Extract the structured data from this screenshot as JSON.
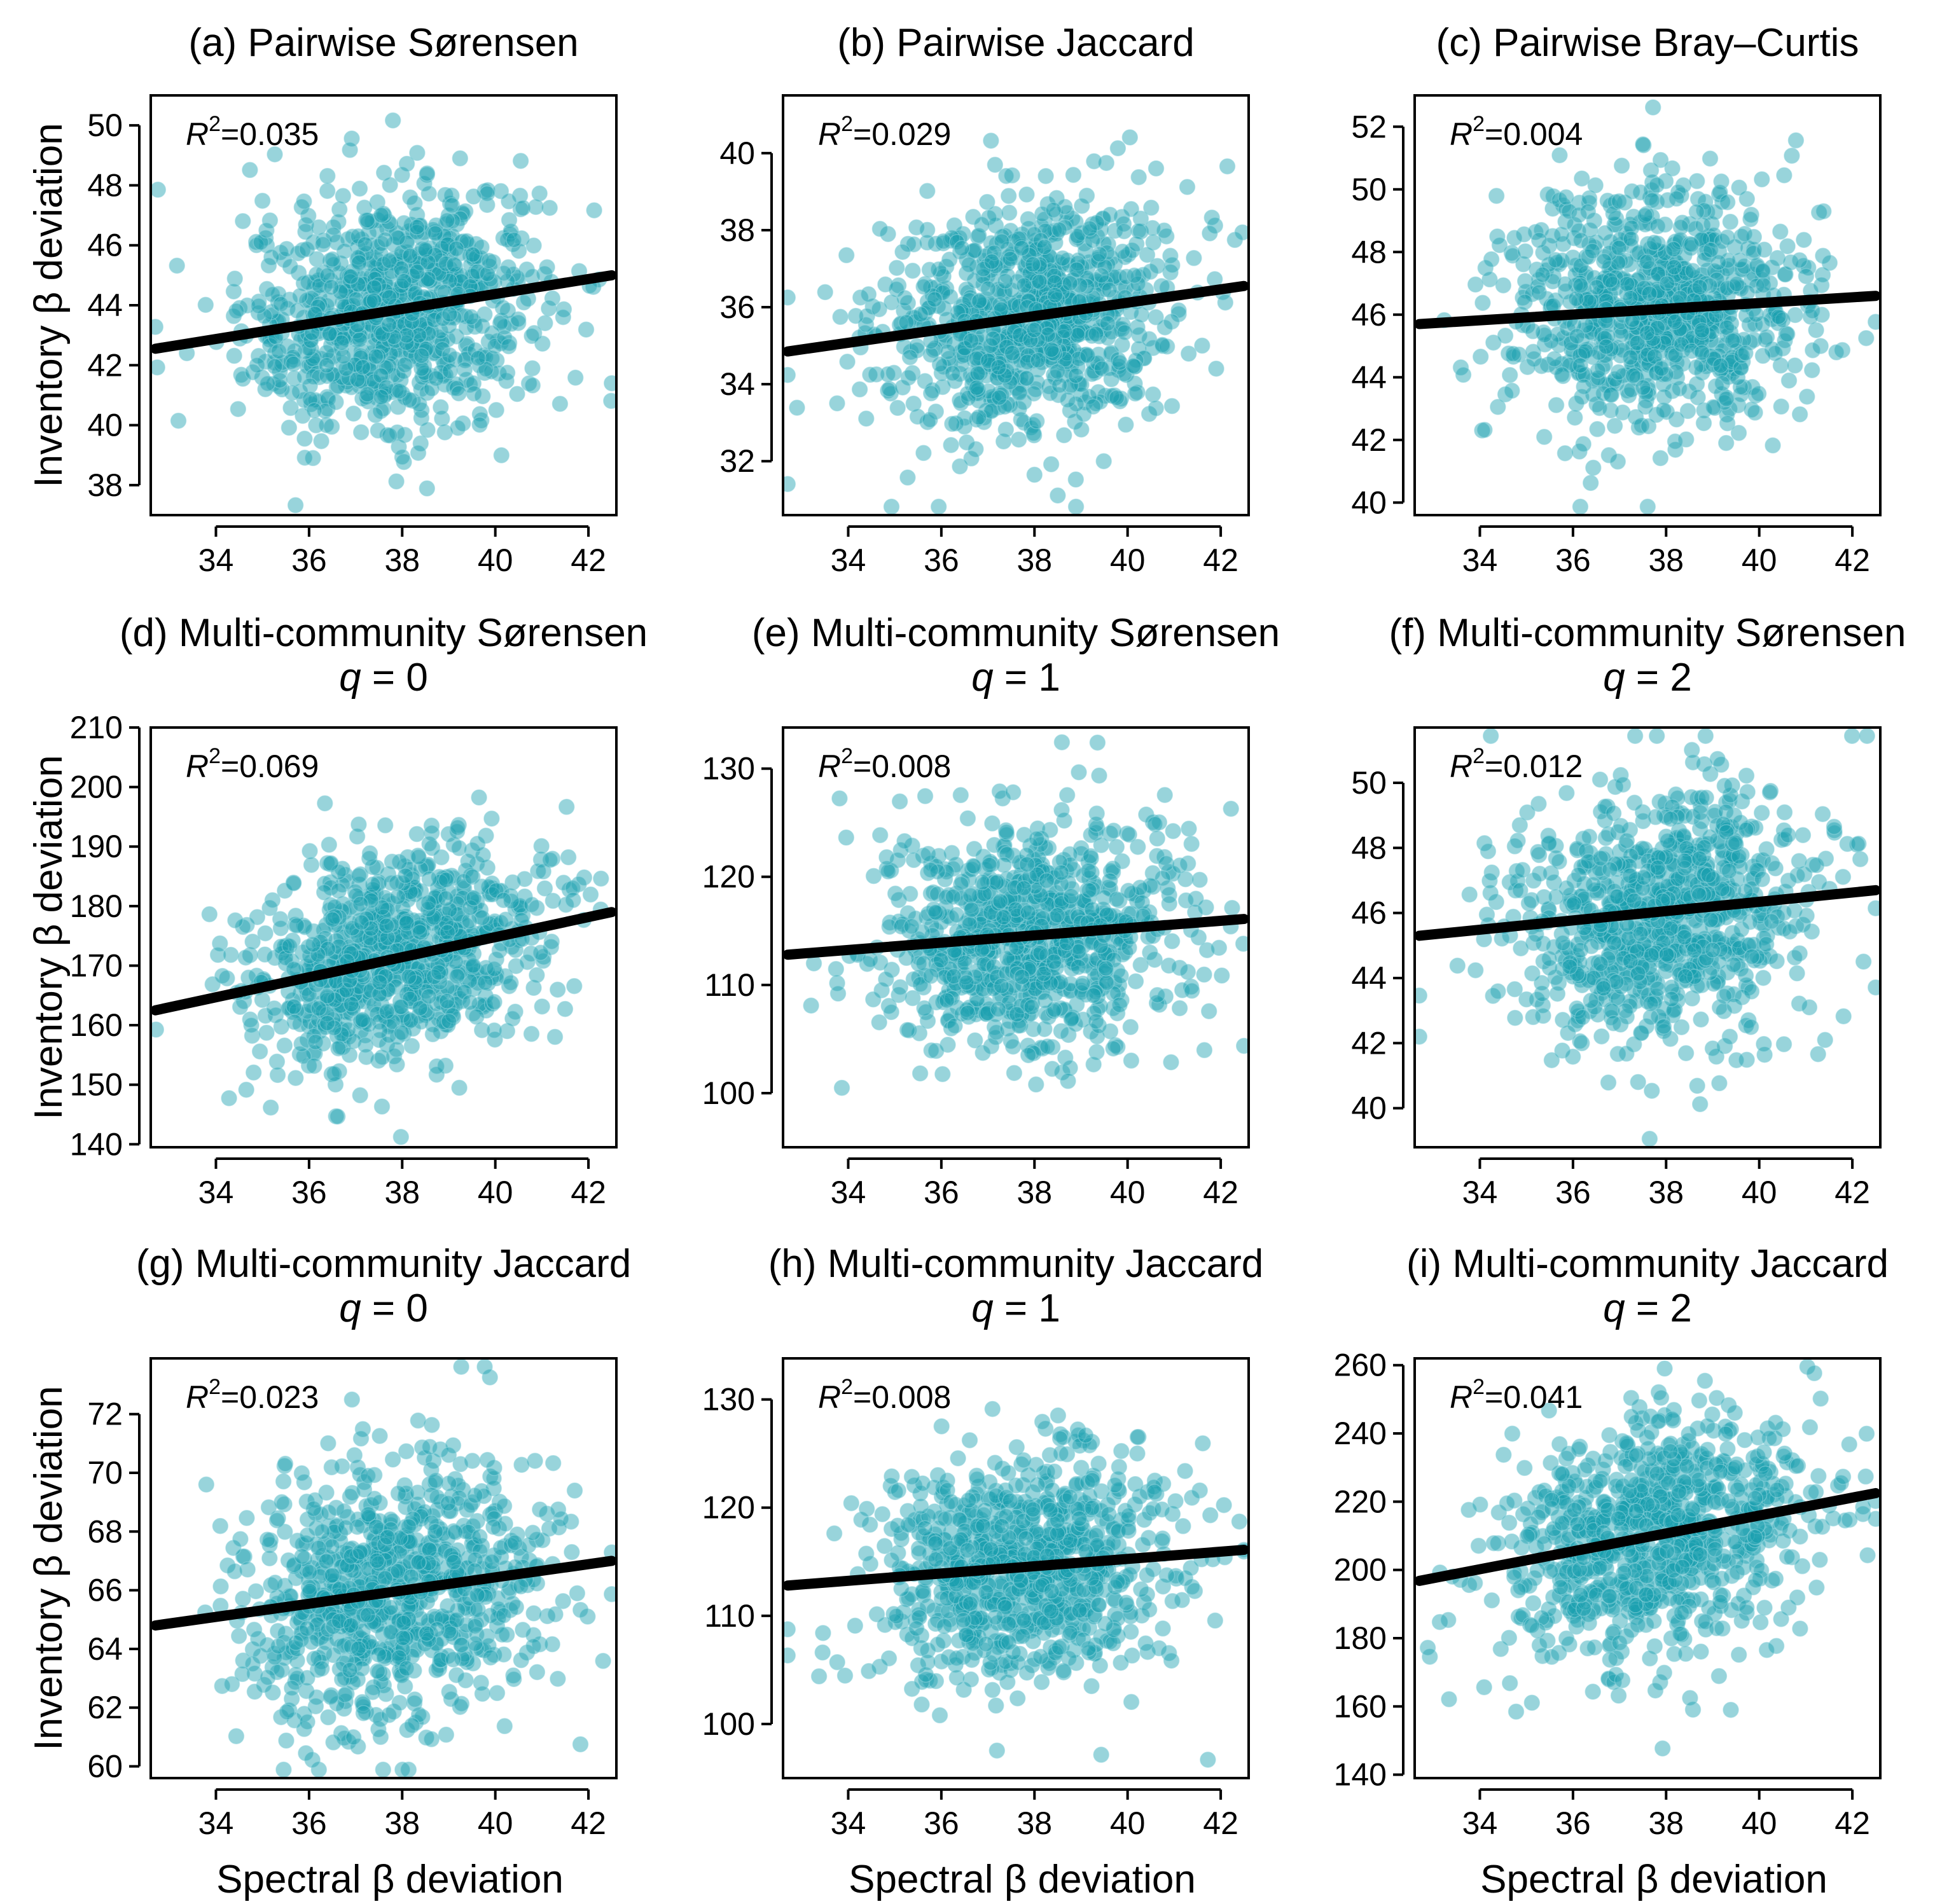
{
  "figure": {
    "shared_xlabel": "Spectral β deviation",
    "shared_ylabel": "Inventory β deviation",
    "colors": {
      "points": "#1a9fb0",
      "points_edge": "#8fd3dc",
      "fit_line": "#000000"
    }
  },
  "chart_data": [
    {
      "id": "a",
      "type": "scatter",
      "title": "(a) Pairwise Sørensen",
      "subtitle_var": "",
      "subtitle_val": "",
      "r2_label": "=0.035",
      "xlabel": "",
      "ylabel": "Inventory β deviation",
      "xlim": [
        32.6,
        42.6
      ],
      "ylim": [
        37,
        51
      ],
      "x_ticks": [
        34,
        36,
        38,
        40,
        42
      ],
      "y_ticks": [
        38,
        40,
        42,
        44,
        46,
        48,
        50
      ],
      "y_center": 43.6,
      "y_spread": 2.0,
      "fit": {
        "x": [
          32.7,
          42.5
        ],
        "y": [
          42.55,
          45.0
        ]
      },
      "n_points": 900
    },
    {
      "id": "b",
      "type": "scatter",
      "title": "(b) Pairwise Jaccard",
      "subtitle_var": "",
      "subtitle_val": "",
      "r2_label": "=0.029",
      "xlabel": "",
      "ylabel": "",
      "xlim": [
        32.6,
        42.6
      ],
      "ylim": [
        30.6,
        41.5
      ],
      "x_ticks": [
        34,
        36,
        38,
        40,
        42
      ],
      "y_ticks": [
        32,
        34,
        36,
        38,
        40
      ],
      "y_center": 35.7,
      "y_spread": 1.5,
      "fit": {
        "x": [
          32.7,
          42.5
        ],
        "y": [
          34.85,
          36.55
        ]
      },
      "n_points": 900
    },
    {
      "id": "c",
      "type": "scatter",
      "title": "(c) Pairwise Bray–Curtis",
      "subtitle_var": "",
      "subtitle_val": "",
      "r2_label": "=0.004",
      "xlabel": "",
      "ylabel": "",
      "xlim": [
        32.6,
        42.6
      ],
      "ylim": [
        39.6,
        53.0
      ],
      "x_ticks": [
        34,
        36,
        38,
        40,
        42
      ],
      "y_ticks": [
        40,
        42,
        44,
        46,
        48,
        50,
        52
      ],
      "y_center": 46.2,
      "y_spread": 2.0,
      "fit": {
        "x": [
          32.7,
          42.5
        ],
        "y": [
          45.7,
          46.6
        ]
      },
      "n_points": 900
    },
    {
      "id": "d",
      "type": "scatter",
      "title": "(d) Multi-community Sørensen",
      "subtitle_var": "q",
      "subtitle_val": " = 0",
      "r2_label": "=0.069",
      "xlabel": "",
      "ylabel": "Inventory β deviation",
      "xlim": [
        32.6,
        42.6
      ],
      "ylim": [
        139.5,
        210
      ],
      "x_ticks": [
        34,
        36,
        38,
        40,
        42
      ],
      "y_ticks": [
        140,
        150,
        160,
        170,
        180,
        190,
        200,
        210
      ],
      "y_center": 170.5,
      "y_spread": 9.0,
      "fit": {
        "x": [
          32.7,
          42.5
        ],
        "y": [
          162.5,
          179.0
        ]
      },
      "n_points": 900
    },
    {
      "id": "e",
      "type": "scatter",
      "title": "(e) Multi-community Sørensen",
      "subtitle_var": "q",
      "subtitle_val": " = 1",
      "r2_label": "=0.008",
      "xlabel": "",
      "ylabel": "",
      "xlim": [
        32.6,
        42.6
      ],
      "ylim": [
        95,
        133.8
      ],
      "x_ticks": [
        34,
        36,
        38,
        40,
        42
      ],
      "y_ticks": [
        100,
        110,
        120,
        130
      ],
      "y_center": 114.5,
      "y_spread": 5.5,
      "fit": {
        "x": [
          32.7,
          42.5
        ],
        "y": [
          112.8,
          116.1
        ]
      },
      "n_points": 900
    },
    {
      "id": "f",
      "type": "scatter",
      "title": "(f) Multi-community Sørensen",
      "subtitle_var": "q",
      "subtitle_val": " = 2",
      "r2_label": "=0.012",
      "xlabel": "",
      "ylabel": "",
      "xlim": [
        32.6,
        42.6
      ],
      "ylim": [
        38.8,
        51.7
      ],
      "x_ticks": [
        34,
        36,
        38,
        40,
        42
      ],
      "y_ticks": [
        40,
        42,
        44,
        46,
        48,
        50
      ],
      "y_center": 46.0,
      "y_spread": 2.0,
      "fit": {
        "x": [
          32.7,
          42.5
        ],
        "y": [
          45.3,
          46.7
        ]
      },
      "n_points": 900
    },
    {
      "id": "g",
      "type": "scatter",
      "title": "(g) Multi-community Jaccard",
      "subtitle_var": "q",
      "subtitle_val": " = 0",
      "r2_label": "=0.023",
      "xlabel": "Spectral β deviation",
      "ylabel": "Inventory β deviation",
      "xlim": [
        32.6,
        42.6
      ],
      "ylim": [
        59.6,
        73.9
      ],
      "x_ticks": [
        34,
        36,
        38,
        40,
        42
      ],
      "y_ticks": [
        60,
        62,
        64,
        66,
        68,
        70,
        72
      ],
      "y_center": 66.0,
      "y_spread": 2.2,
      "fit": {
        "x": [
          32.7,
          42.5
        ],
        "y": [
          64.8,
          67.0
        ]
      },
      "n_points": 900
    },
    {
      "id": "h",
      "type": "scatter",
      "title": "(h) Multi-community Jaccard",
      "subtitle_var": "q",
      "subtitle_val": " = 1",
      "r2_label": "=0.008",
      "xlabel": "Spectral β deviation",
      "ylabel": "",
      "xlim": [
        32.6,
        42.6
      ],
      "ylim": [
        95,
        133.8
      ],
      "x_ticks": [
        34,
        36,
        38,
        40,
        42
      ],
      "y_ticks": [
        100,
        110,
        120,
        130
      ],
      "y_center": 114.5,
      "y_spread": 5.5,
      "fit": {
        "x": [
          32.7,
          42.5
        ],
        "y": [
          112.8,
          116.1
        ]
      },
      "n_points": 900
    },
    {
      "id": "i",
      "type": "scatter",
      "title": "(i) Multi-community Jaccard",
      "subtitle_var": "q",
      "subtitle_val": " = 2",
      "r2_label": "=0.041",
      "xlabel": "Spectral β deviation",
      "ylabel": "",
      "xlim": [
        32.6,
        42.6
      ],
      "ylim": [
        139,
        262
      ],
      "x_ticks": [
        34,
        36,
        38,
        40,
        42
      ],
      "y_ticks": [
        140,
        160,
        180,
        200,
        220,
        240,
        260
      ],
      "y_center": 210,
      "y_spread": 18,
      "fit": {
        "x": [
          32.7,
          42.5
        ],
        "y": [
          196.8,
          222.5
        ]
      },
      "n_points": 900
    }
  ]
}
